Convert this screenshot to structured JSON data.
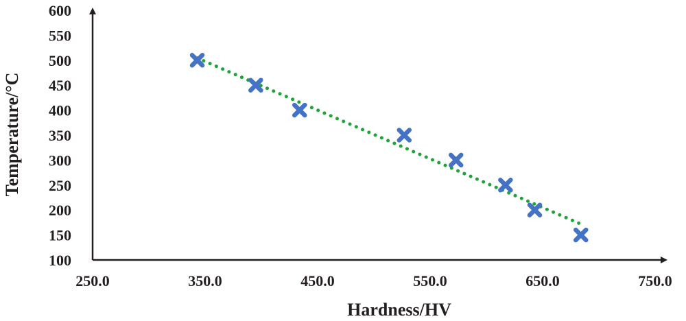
{
  "chart_data": {
    "type": "scatter",
    "title": "",
    "xlabel": "Hardness/HV",
    "ylabel": "Temperature/°C",
    "xlim": [
      250,
      750
    ],
    "ylim": [
      100,
      600
    ],
    "x_ticks": [
      "250.0",
      "350.0",
      "450.0",
      "550.0",
      "650.0",
      "750.0"
    ],
    "y_ticks": [
      "100",
      "150",
      "200",
      "250",
      "300",
      "350",
      "400",
      "450",
      "500",
      "550",
      "600"
    ],
    "grid": false,
    "legend": "none",
    "series": [
      {
        "marker": "x",
        "x": [
          343,
          395,
          434,
          527,
          573,
          617,
          643,
          684
        ],
        "y": [
          500,
          450,
          400,
          350,
          300,
          250,
          200,
          150
        ]
      }
    ],
    "trendline": {
      "style": "dotted",
      "type": "linear"
    },
    "colors": {
      "marker": "#4472c4",
      "trendline": "#1fa43c",
      "axis": "#231f20"
    }
  }
}
